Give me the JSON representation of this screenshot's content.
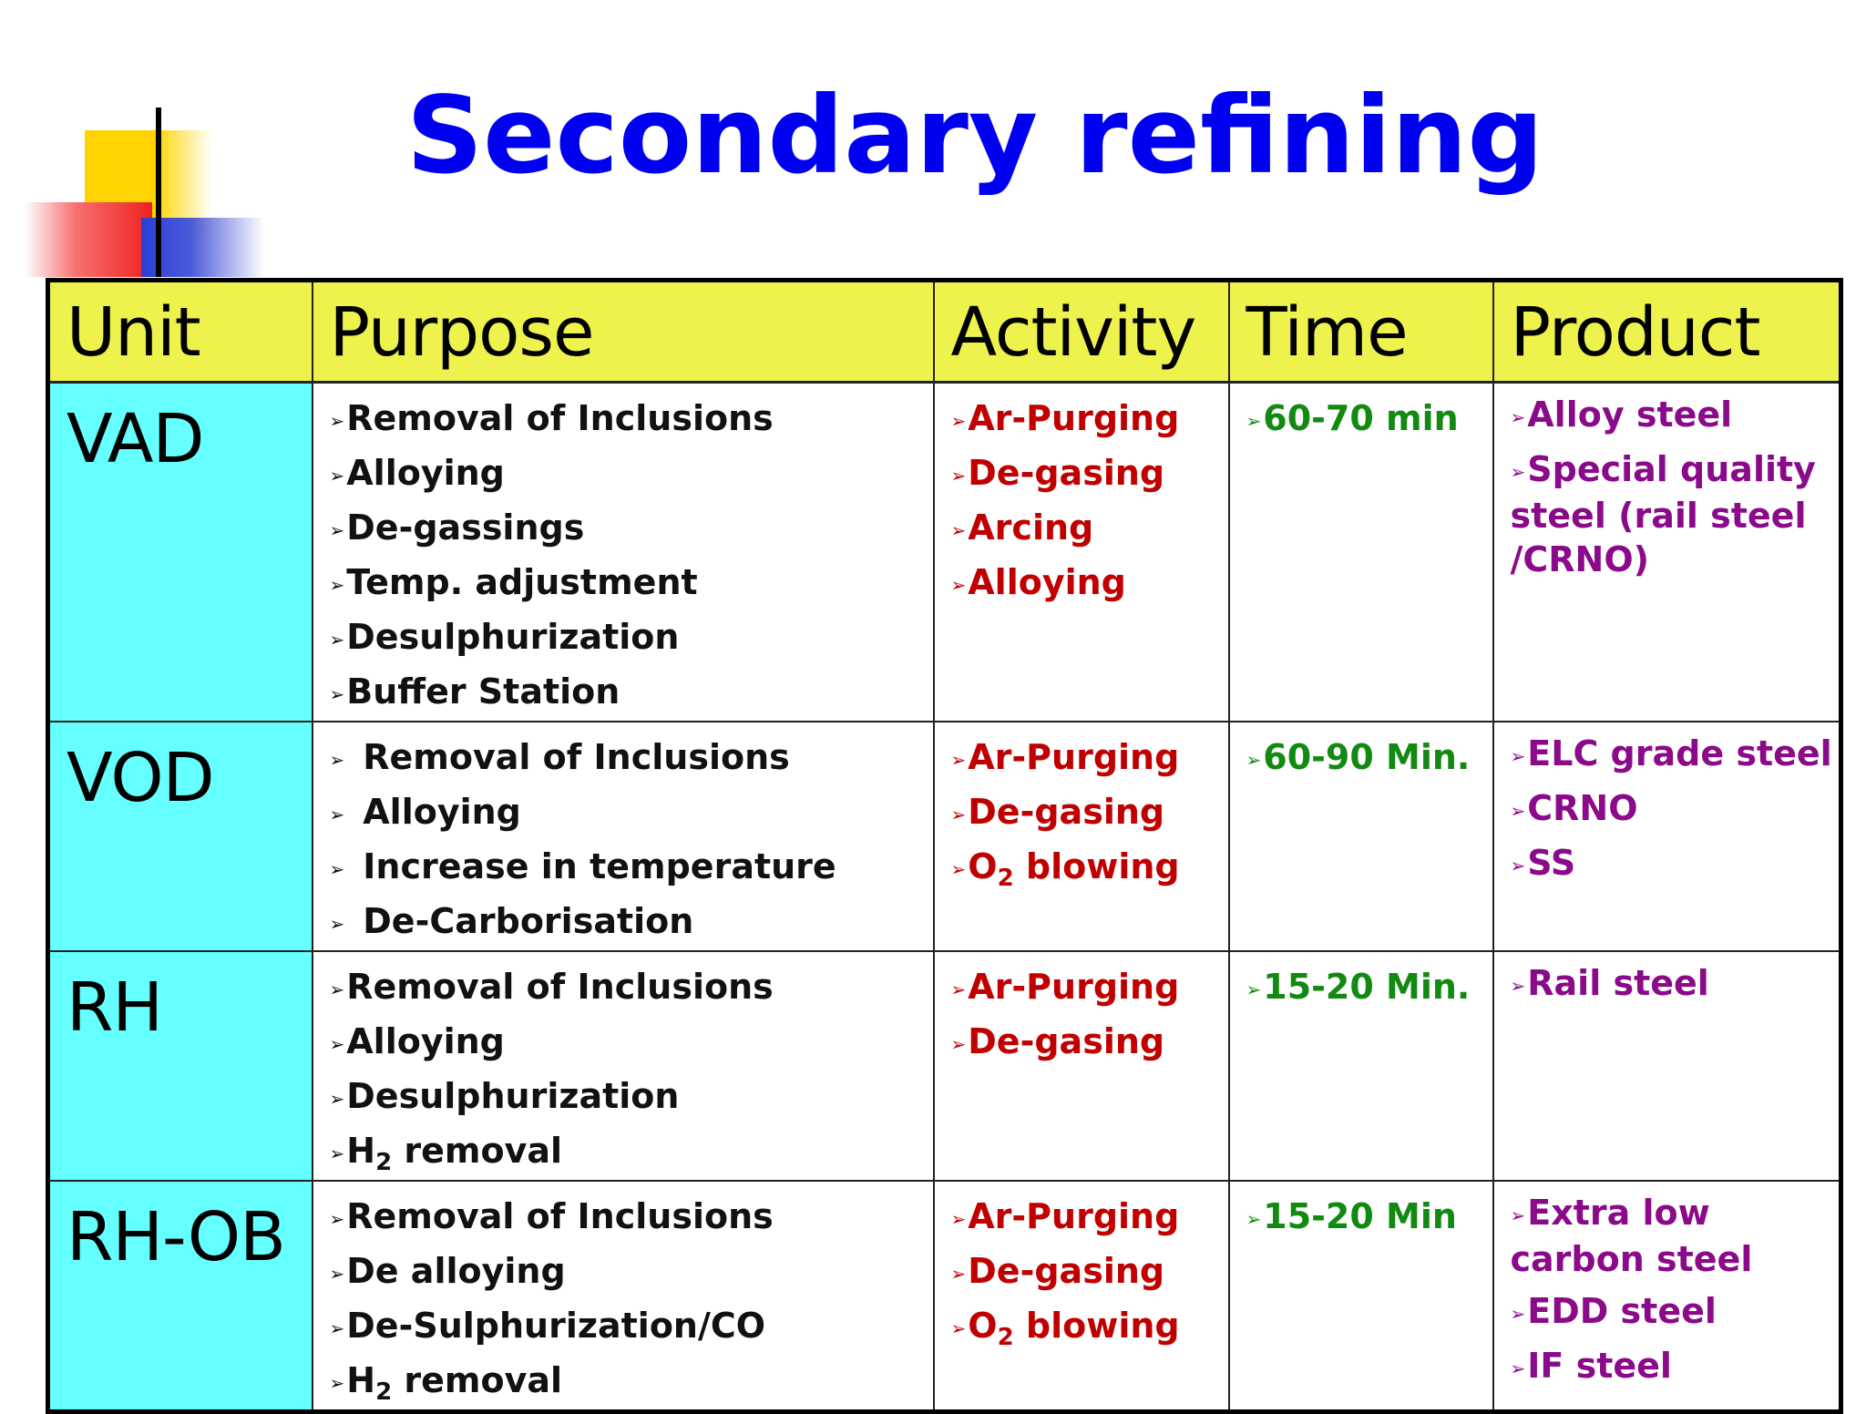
{
  "title": "Secondary refining",
  "bullet_glyph": "➢",
  "colors": {
    "title": "#0000f0",
    "header_bg": "#eef24c",
    "unit_bg": "#66ffff",
    "purpose_text": "#111111",
    "activity_text": "#c00000",
    "time_text": "#128a12",
    "product_text": "#8a0a8a"
  },
  "table": {
    "headers": [
      "Unit",
      "Purpose",
      "Activity",
      "Time",
      "Product"
    ],
    "rows": [
      {
        "unit": "VAD",
        "purpose": [
          "Removal of Inclusions",
          "Alloying",
          "De-gassings",
          "Temp. adjustment",
          "Desulphurization",
          "Buffer Station"
        ],
        "activity": [
          {
            "text": "Ar-Purging"
          },
          {
            "text": "De-gasing"
          },
          {
            "text": "Arcing"
          },
          {
            "text": "Alloying"
          }
        ],
        "time": [
          "60-70 min"
        ],
        "product": [
          "Alloy steel",
          "Special quality steel (rail steel /CRNO)"
        ]
      },
      {
        "unit": "VOD",
        "purpose": [
          "Removal of Inclusions",
          "Alloying",
          "Increase in temperature",
          "De-Carborisation"
        ],
        "activity": [
          {
            "text": "Ar-Purging"
          },
          {
            "text": "De-gasing"
          },
          {
            "text": "O",
            "sub": "2",
            "rest": " blowing"
          }
        ],
        "time": [
          "60-90 Min."
        ],
        "product": [
          "ELC grade steel",
          "CRNO",
          "SS"
        ]
      },
      {
        "unit": "RH",
        "purpose": [
          {
            "text": "Removal of Inclusions"
          },
          {
            "text": "Alloying"
          },
          {
            "text": "Desulphurization"
          },
          {
            "text": "H",
            "sub": "2",
            "rest": " removal"
          }
        ],
        "activity": [
          {
            "text": "Ar-Purging"
          },
          {
            "text": "De-gasing"
          }
        ],
        "time": [
          "15-20 Min."
        ],
        "product": [
          "Rail steel"
        ]
      },
      {
        "unit": "RH-OB",
        "purpose": [
          {
            "text": "Removal of Inclusions"
          },
          {
            "text": "De alloying"
          },
          {
            "text": "De-Sulphurization/CO"
          },
          {
            "text": "H",
            "sub": "2",
            "rest": " removal"
          }
        ],
        "activity": [
          {
            "text": "Ar-Purging"
          },
          {
            "text": "De-gasing"
          },
          {
            "text": "O",
            "sub": "2",
            "rest": " blowing"
          }
        ],
        "time": [
          "15-20 Min"
        ],
        "product": [
          "Extra low carbon steel",
          "EDD steel",
          "IF steel"
        ]
      }
    ]
  }
}
